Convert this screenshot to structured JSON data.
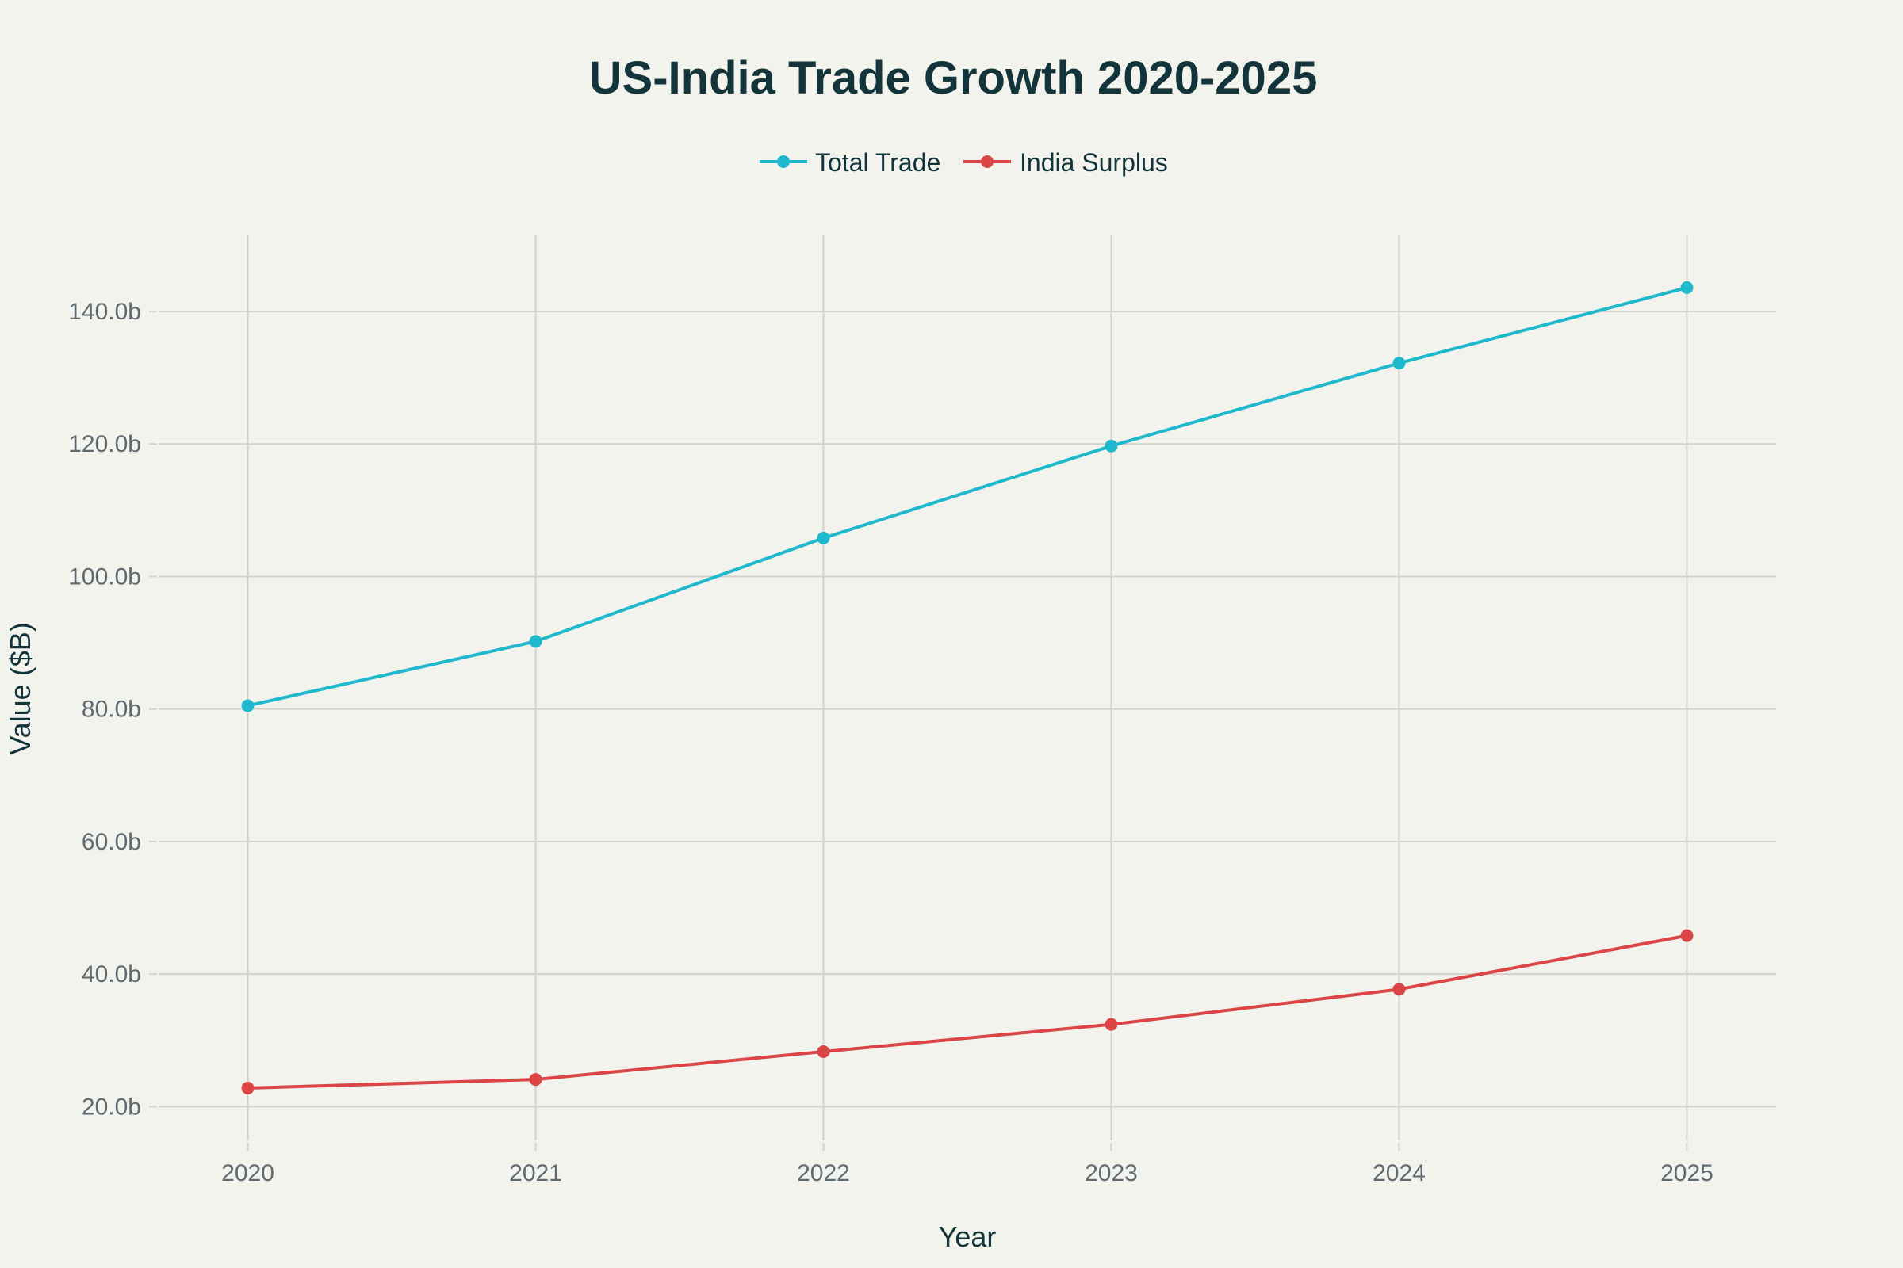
{
  "chart_data": {
    "type": "line",
    "title": "US-India Trade Growth 2020-2025",
    "xlabel": "Year",
    "ylabel": "Value ($B)",
    "x": [
      2020,
      2021,
      2022,
      2023,
      2024,
      2025
    ],
    "x_tick_labels": [
      "2020",
      "2021",
      "2022",
      "2023",
      "2024",
      "2025"
    ],
    "y_ticks": [
      20,
      40,
      60,
      80,
      100,
      120,
      140
    ],
    "y_tick_labels": [
      "20.0b",
      "40.0b",
      "60.0b",
      "80.0b",
      "100.0b",
      "120.0b",
      "140.0b"
    ],
    "xlim": [
      2019.69,
      2025.31
    ],
    "ylim": [
      14.9,
      151.6
    ],
    "grid": true,
    "legend_position": "top-center",
    "series": [
      {
        "name": "Total Trade",
        "color": "#1fb8cd",
        "values": [
          80.5,
          90.2,
          105.8,
          119.7,
          132.2,
          143.6
        ]
      },
      {
        "name": "India Surplus",
        "color": "#db4545",
        "values": [
          22.8,
          24.1,
          28.3,
          32.4,
          37.7,
          45.8
        ]
      }
    ]
  },
  "colors": {
    "background": "#f3f3ee",
    "text": "#13343b",
    "tick_text": "#5f6b71",
    "grid": "#d4d1cb"
  }
}
